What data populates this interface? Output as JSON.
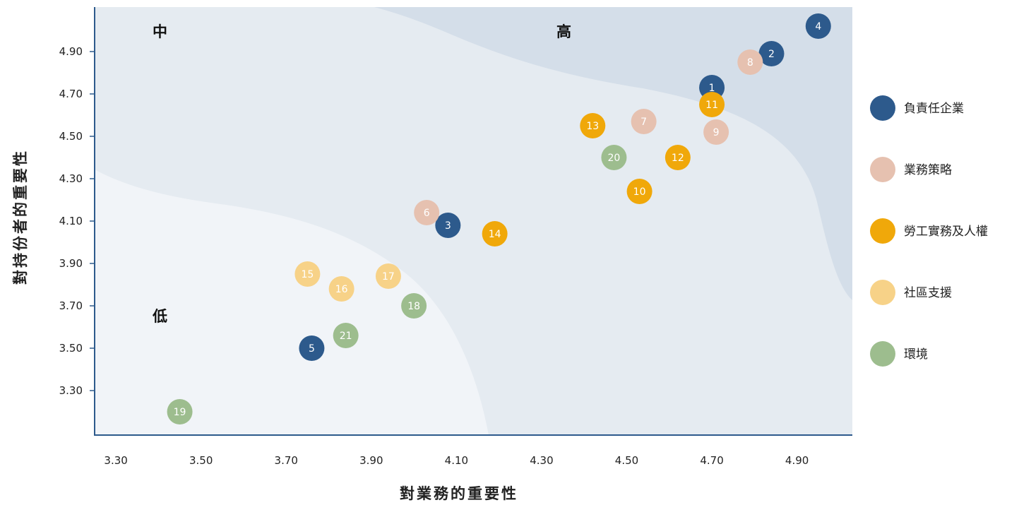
{
  "chart_data": {
    "type": "scatter",
    "xlabel": "對業務的重要性",
    "ylabel": "對持份者的重要性",
    "xlim": [
      3.25,
      5.03
    ],
    "ylim": [
      3.09,
      5.11
    ],
    "x_ticks": [
      "3.30",
      "3.50",
      "3.70",
      "3.90",
      "4.10",
      "4.30",
      "4.50",
      "4.70",
      "4.90"
    ],
    "y_ticks": [
      "4.90",
      "4.70",
      "4.50",
      "4.30",
      "4.10",
      "3.90",
      "3.70",
      "3.50",
      "3.30"
    ],
    "zones": [
      {
        "name": "低",
        "color": "#f1f4f8"
      },
      {
        "name": "中",
        "color": "#e5ebf1"
      },
      {
        "name": "高",
        "color": "#d4dee9"
      }
    ],
    "series": [
      {
        "name": "負責任企業",
        "color": "#2d5a8c",
        "points": [
          {
            "label": "1",
            "x": 4.7,
            "y": 4.73
          },
          {
            "label": "2",
            "x": 4.84,
            "y": 4.89
          },
          {
            "label": "3",
            "x": 4.08,
            "y": 4.08
          },
          {
            "label": "4",
            "x": 4.95,
            "y": 5.02
          },
          {
            "label": "5",
            "x": 3.76,
            "y": 3.5
          }
        ]
      },
      {
        "name": "業務策略",
        "color": "#e6c1b0",
        "points": [
          {
            "label": "6",
            "x": 4.03,
            "y": 4.14
          },
          {
            "label": "7",
            "x": 4.54,
            "y": 4.57
          },
          {
            "label": "8",
            "x": 4.79,
            "y": 4.85
          },
          {
            "label": "9",
            "x": 4.71,
            "y": 4.52
          }
        ]
      },
      {
        "name": "勞工實務及人權",
        "color": "#f0a80a",
        "points": [
          {
            "label": "10",
            "x": 4.53,
            "y": 4.24
          },
          {
            "label": "11",
            "x": 4.7,
            "y": 4.65
          },
          {
            "label": "12",
            "x": 4.62,
            "y": 4.4
          },
          {
            "label": "13",
            "x": 4.42,
            "y": 4.55
          },
          {
            "label": "14",
            "x": 4.19,
            "y": 4.04
          }
        ]
      },
      {
        "name": "社區支援",
        "color": "#f7d288",
        "points": [
          {
            "label": "15",
            "x": 3.75,
            "y": 3.85
          },
          {
            "label": "16",
            "x": 3.83,
            "y": 3.78
          },
          {
            "label": "17",
            "x": 3.94,
            "y": 3.84
          }
        ]
      },
      {
        "name": "環境",
        "color": "#9dbd8e",
        "points": [
          {
            "label": "18",
            "x": 4.0,
            "y": 3.7
          },
          {
            "label": "19",
            "x": 3.45,
            "y": 3.2
          },
          {
            "label": "20",
            "x": 4.47,
            "y": 4.4
          },
          {
            "label": "21",
            "x": 3.84,
            "y": 3.56
          }
        ]
      }
    ]
  }
}
